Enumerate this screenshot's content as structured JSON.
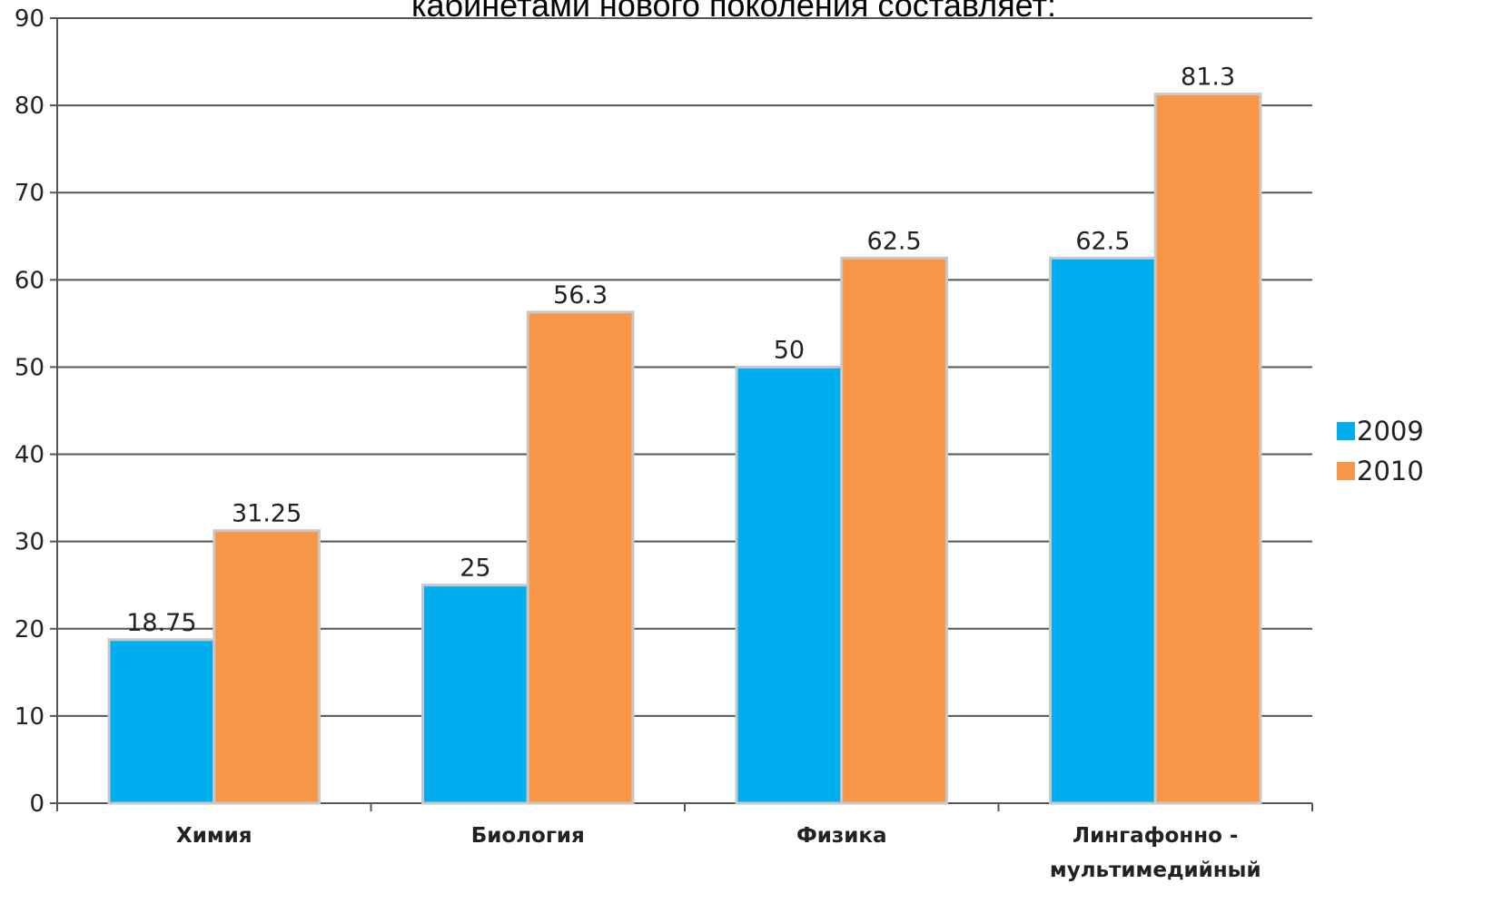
{
  "chart_data": {
    "type": "bar",
    "title": "кабинетами нового поколения составляет:",
    "xlabel": "",
    "ylabel": "",
    "ylim": [
      0,
      90
    ],
    "yticks": [
      0,
      10,
      20,
      30,
      40,
      50,
      60,
      70,
      80,
      90
    ],
    "grid": true,
    "legend_position": "right",
    "categories": [
      [
        "Химия"
      ],
      [
        "Биология"
      ],
      [
        "Физика"
      ],
      [
        "Лингафонно -",
        "мультимедийный"
      ]
    ],
    "series": [
      {
        "name": "2009",
        "color": "#00AEEF",
        "values": [
          18.75,
          25,
          50,
          62.5
        ],
        "labels": [
          "18.75",
          "25",
          "50",
          "62.5"
        ]
      },
      {
        "name": "2010",
        "color": "#F79646",
        "values": [
          31.25,
          56.3,
          62.5,
          81.3
        ],
        "labels": [
          "31.25",
          "56.3",
          "62.5",
          "81.3"
        ]
      }
    ]
  }
}
